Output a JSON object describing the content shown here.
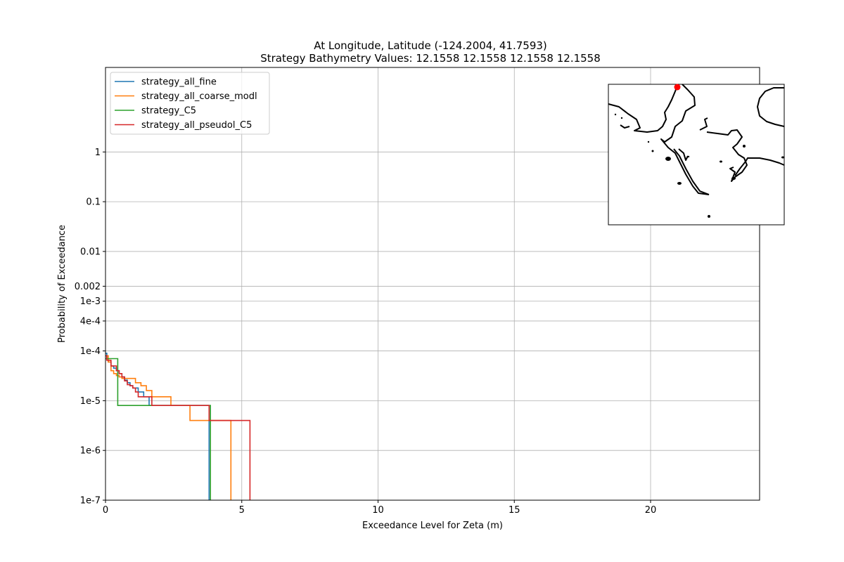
{
  "chart_data": {
    "type": "line",
    "title": "At Longitude, Latitude (-124.2004,  41.7593)",
    "subtitle": "Strategy Bathymetry Values:   12.1558   12.1558   12.1558   12.1558",
    "xlabel": "Exceedance Level for Zeta (m)",
    "ylabel": "Probability of Exceedance",
    "xlim": [
      0,
      24
    ],
    "y_scale": "log",
    "ylim": [
      1e-07,
      50
    ],
    "grid": true,
    "legend_position": "top-left",
    "x_ticks": [
      {
        "value": 0,
        "label": "0"
      },
      {
        "value": 5,
        "label": "5"
      },
      {
        "value": 10,
        "label": "10"
      },
      {
        "value": 15,
        "label": "15"
      },
      {
        "value": 20,
        "label": "20"
      }
    ],
    "y_ticks": [
      {
        "value": 1,
        "label": "1"
      },
      {
        "value": 0.1,
        "label": "0.1"
      },
      {
        "value": 0.01,
        "label": "0.01"
      },
      {
        "value": 0.002,
        "label": "0.002"
      },
      {
        "value": 0.001,
        "label": "1e-3"
      },
      {
        "value": 0.0004,
        "label": "4e-4"
      },
      {
        "value": 0.0001,
        "label": "1e-4"
      },
      {
        "value": 1e-05,
        "label": "1e-5"
      },
      {
        "value": 1e-06,
        "label": "1e-6"
      },
      {
        "value": 1e-07,
        "label": "1e-7"
      }
    ],
    "series": [
      {
        "name": "strategy_all_fine",
        "color": "#1f77b4",
        "x": [
          0,
          0.05,
          0.1,
          0.2,
          0.3,
          0.4,
          0.5,
          0.6,
          0.7,
          0.8,
          0.9,
          1.0,
          1.2,
          1.4,
          1.6,
          2.0,
          2.5,
          3.0,
          3.8,
          3.8
        ],
        "y": [
          9e-05,
          7e-05,
          6e-05,
          5e-05,
          4.5e-05,
          4e-05,
          3.5e-05,
          3e-05,
          2.6e-05,
          2.3e-05,
          2e-05,
          1.8e-05,
          1.5e-05,
          1.2e-05,
          8e-06,
          8e-06,
          8e-06,
          8e-06,
          4e-06,
          1e-07
        ]
      },
      {
        "name": "strategy_all_coarse_modl",
        "color": "#ff7f0e",
        "x": [
          0,
          0.1,
          0.2,
          0.3,
          0.4,
          0.5,
          0.6,
          0.8,
          1.0,
          1.1,
          1.3,
          1.5,
          1.7,
          2.0,
          2.4,
          3.1,
          3.5,
          4.6,
          4.6
        ],
        "y": [
          8e-05,
          6e-05,
          4e-05,
          3.5e-05,
          3.2e-05,
          3e-05,
          2.8e-05,
          2.8e-05,
          2.8e-05,
          2.3e-05,
          2e-05,
          1.6e-05,
          1.2e-05,
          1.2e-05,
          8e-06,
          4e-06,
          4e-06,
          4e-06,
          1e-07
        ]
      },
      {
        "name": "strategy_C5",
        "color": "#2ca02c",
        "x": [
          0,
          0.2,
          0.4,
          0.45,
          1.0,
          2.0,
          3.0,
          3.85,
          3.85
        ],
        "y": [
          7e-05,
          7e-05,
          7e-05,
          8e-06,
          8e-06,
          8e-06,
          8e-06,
          8e-06,
          1e-07
        ]
      },
      {
        "name": "strategy_all_pseudol_C5",
        "color": "#d62728",
        "x": [
          0,
          0.05,
          0.2,
          0.4,
          0.5,
          0.6,
          0.7,
          0.8,
          0.9,
          1.0,
          1.1,
          1.2,
          1.4,
          1.6,
          1.7,
          2.5,
          3.5,
          3.8,
          4.0,
          5.3,
          5.3
        ],
        "y": [
          8e-05,
          6.5e-05,
          5e-05,
          4e-05,
          3.5e-05,
          3e-05,
          2.5e-05,
          2.1e-05,
          2e-05,
          1.8e-05,
          1.5e-05,
          1.2e-05,
          1.2e-05,
          1.2e-05,
          8e-06,
          8e-06,
          8e-06,
          4e-06,
          4e-06,
          4e-06,
          1e-07
        ]
      }
    ]
  },
  "inset_map": {
    "marker_color": "#ff0000",
    "coast_color": "#000000"
  }
}
